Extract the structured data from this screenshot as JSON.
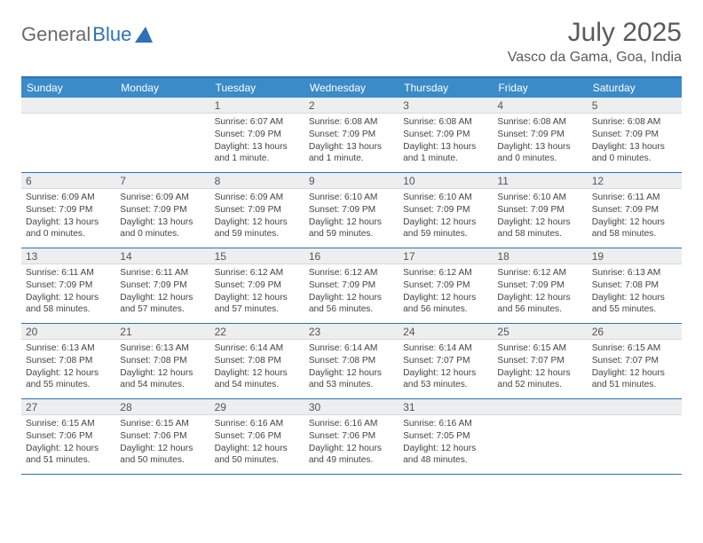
{
  "logo": {
    "text_gray": "General",
    "text_blue": "Blue"
  },
  "title": "July 2025",
  "location": "Vasco da Gama, Goa, India",
  "colors": {
    "header_bg": "#3b8bc8",
    "border": "#2d72b8",
    "daynum_bg": "#eceeef",
    "text": "#444444"
  },
  "day_names": [
    "Sunday",
    "Monday",
    "Tuesday",
    "Wednesday",
    "Thursday",
    "Friday",
    "Saturday"
  ],
  "weeks": [
    [
      null,
      null,
      {
        "n": "1",
        "sr": "Sunrise: 6:07 AM",
        "ss": "Sunset: 7:09 PM",
        "dl": "Daylight: 13 hours and 1 minute."
      },
      {
        "n": "2",
        "sr": "Sunrise: 6:08 AM",
        "ss": "Sunset: 7:09 PM",
        "dl": "Daylight: 13 hours and 1 minute."
      },
      {
        "n": "3",
        "sr": "Sunrise: 6:08 AM",
        "ss": "Sunset: 7:09 PM",
        "dl": "Daylight: 13 hours and 1 minute."
      },
      {
        "n": "4",
        "sr": "Sunrise: 6:08 AM",
        "ss": "Sunset: 7:09 PM",
        "dl": "Daylight: 13 hours and 0 minutes."
      },
      {
        "n": "5",
        "sr": "Sunrise: 6:08 AM",
        "ss": "Sunset: 7:09 PM",
        "dl": "Daylight: 13 hours and 0 minutes."
      }
    ],
    [
      {
        "n": "6",
        "sr": "Sunrise: 6:09 AM",
        "ss": "Sunset: 7:09 PM",
        "dl": "Daylight: 13 hours and 0 minutes."
      },
      {
        "n": "7",
        "sr": "Sunrise: 6:09 AM",
        "ss": "Sunset: 7:09 PM",
        "dl": "Daylight: 13 hours and 0 minutes."
      },
      {
        "n": "8",
        "sr": "Sunrise: 6:09 AM",
        "ss": "Sunset: 7:09 PM",
        "dl": "Daylight: 12 hours and 59 minutes."
      },
      {
        "n": "9",
        "sr": "Sunrise: 6:10 AM",
        "ss": "Sunset: 7:09 PM",
        "dl": "Daylight: 12 hours and 59 minutes."
      },
      {
        "n": "10",
        "sr": "Sunrise: 6:10 AM",
        "ss": "Sunset: 7:09 PM",
        "dl": "Daylight: 12 hours and 59 minutes."
      },
      {
        "n": "11",
        "sr": "Sunrise: 6:10 AM",
        "ss": "Sunset: 7:09 PM",
        "dl": "Daylight: 12 hours and 58 minutes."
      },
      {
        "n": "12",
        "sr": "Sunrise: 6:11 AM",
        "ss": "Sunset: 7:09 PM",
        "dl": "Daylight: 12 hours and 58 minutes."
      }
    ],
    [
      {
        "n": "13",
        "sr": "Sunrise: 6:11 AM",
        "ss": "Sunset: 7:09 PM",
        "dl": "Daylight: 12 hours and 58 minutes."
      },
      {
        "n": "14",
        "sr": "Sunrise: 6:11 AM",
        "ss": "Sunset: 7:09 PM",
        "dl": "Daylight: 12 hours and 57 minutes."
      },
      {
        "n": "15",
        "sr": "Sunrise: 6:12 AM",
        "ss": "Sunset: 7:09 PM",
        "dl": "Daylight: 12 hours and 57 minutes."
      },
      {
        "n": "16",
        "sr": "Sunrise: 6:12 AM",
        "ss": "Sunset: 7:09 PM",
        "dl": "Daylight: 12 hours and 56 minutes."
      },
      {
        "n": "17",
        "sr": "Sunrise: 6:12 AM",
        "ss": "Sunset: 7:09 PM",
        "dl": "Daylight: 12 hours and 56 minutes."
      },
      {
        "n": "18",
        "sr": "Sunrise: 6:12 AM",
        "ss": "Sunset: 7:09 PM",
        "dl": "Daylight: 12 hours and 56 minutes."
      },
      {
        "n": "19",
        "sr": "Sunrise: 6:13 AM",
        "ss": "Sunset: 7:08 PM",
        "dl": "Daylight: 12 hours and 55 minutes."
      }
    ],
    [
      {
        "n": "20",
        "sr": "Sunrise: 6:13 AM",
        "ss": "Sunset: 7:08 PM",
        "dl": "Daylight: 12 hours and 55 minutes."
      },
      {
        "n": "21",
        "sr": "Sunrise: 6:13 AM",
        "ss": "Sunset: 7:08 PM",
        "dl": "Daylight: 12 hours and 54 minutes."
      },
      {
        "n": "22",
        "sr": "Sunrise: 6:14 AM",
        "ss": "Sunset: 7:08 PM",
        "dl": "Daylight: 12 hours and 54 minutes."
      },
      {
        "n": "23",
        "sr": "Sunrise: 6:14 AM",
        "ss": "Sunset: 7:08 PM",
        "dl": "Daylight: 12 hours and 53 minutes."
      },
      {
        "n": "24",
        "sr": "Sunrise: 6:14 AM",
        "ss": "Sunset: 7:07 PM",
        "dl": "Daylight: 12 hours and 53 minutes."
      },
      {
        "n": "25",
        "sr": "Sunrise: 6:15 AM",
        "ss": "Sunset: 7:07 PM",
        "dl": "Daylight: 12 hours and 52 minutes."
      },
      {
        "n": "26",
        "sr": "Sunrise: 6:15 AM",
        "ss": "Sunset: 7:07 PM",
        "dl": "Daylight: 12 hours and 51 minutes."
      }
    ],
    [
      {
        "n": "27",
        "sr": "Sunrise: 6:15 AM",
        "ss": "Sunset: 7:06 PM",
        "dl": "Daylight: 12 hours and 51 minutes."
      },
      {
        "n": "28",
        "sr": "Sunrise: 6:15 AM",
        "ss": "Sunset: 7:06 PM",
        "dl": "Daylight: 12 hours and 50 minutes."
      },
      {
        "n": "29",
        "sr": "Sunrise: 6:16 AM",
        "ss": "Sunset: 7:06 PM",
        "dl": "Daylight: 12 hours and 50 minutes."
      },
      {
        "n": "30",
        "sr": "Sunrise: 6:16 AM",
        "ss": "Sunset: 7:06 PM",
        "dl": "Daylight: 12 hours and 49 minutes."
      },
      {
        "n": "31",
        "sr": "Sunrise: 6:16 AM",
        "ss": "Sunset: 7:05 PM",
        "dl": "Daylight: 12 hours and 48 minutes."
      },
      null,
      null
    ]
  ]
}
